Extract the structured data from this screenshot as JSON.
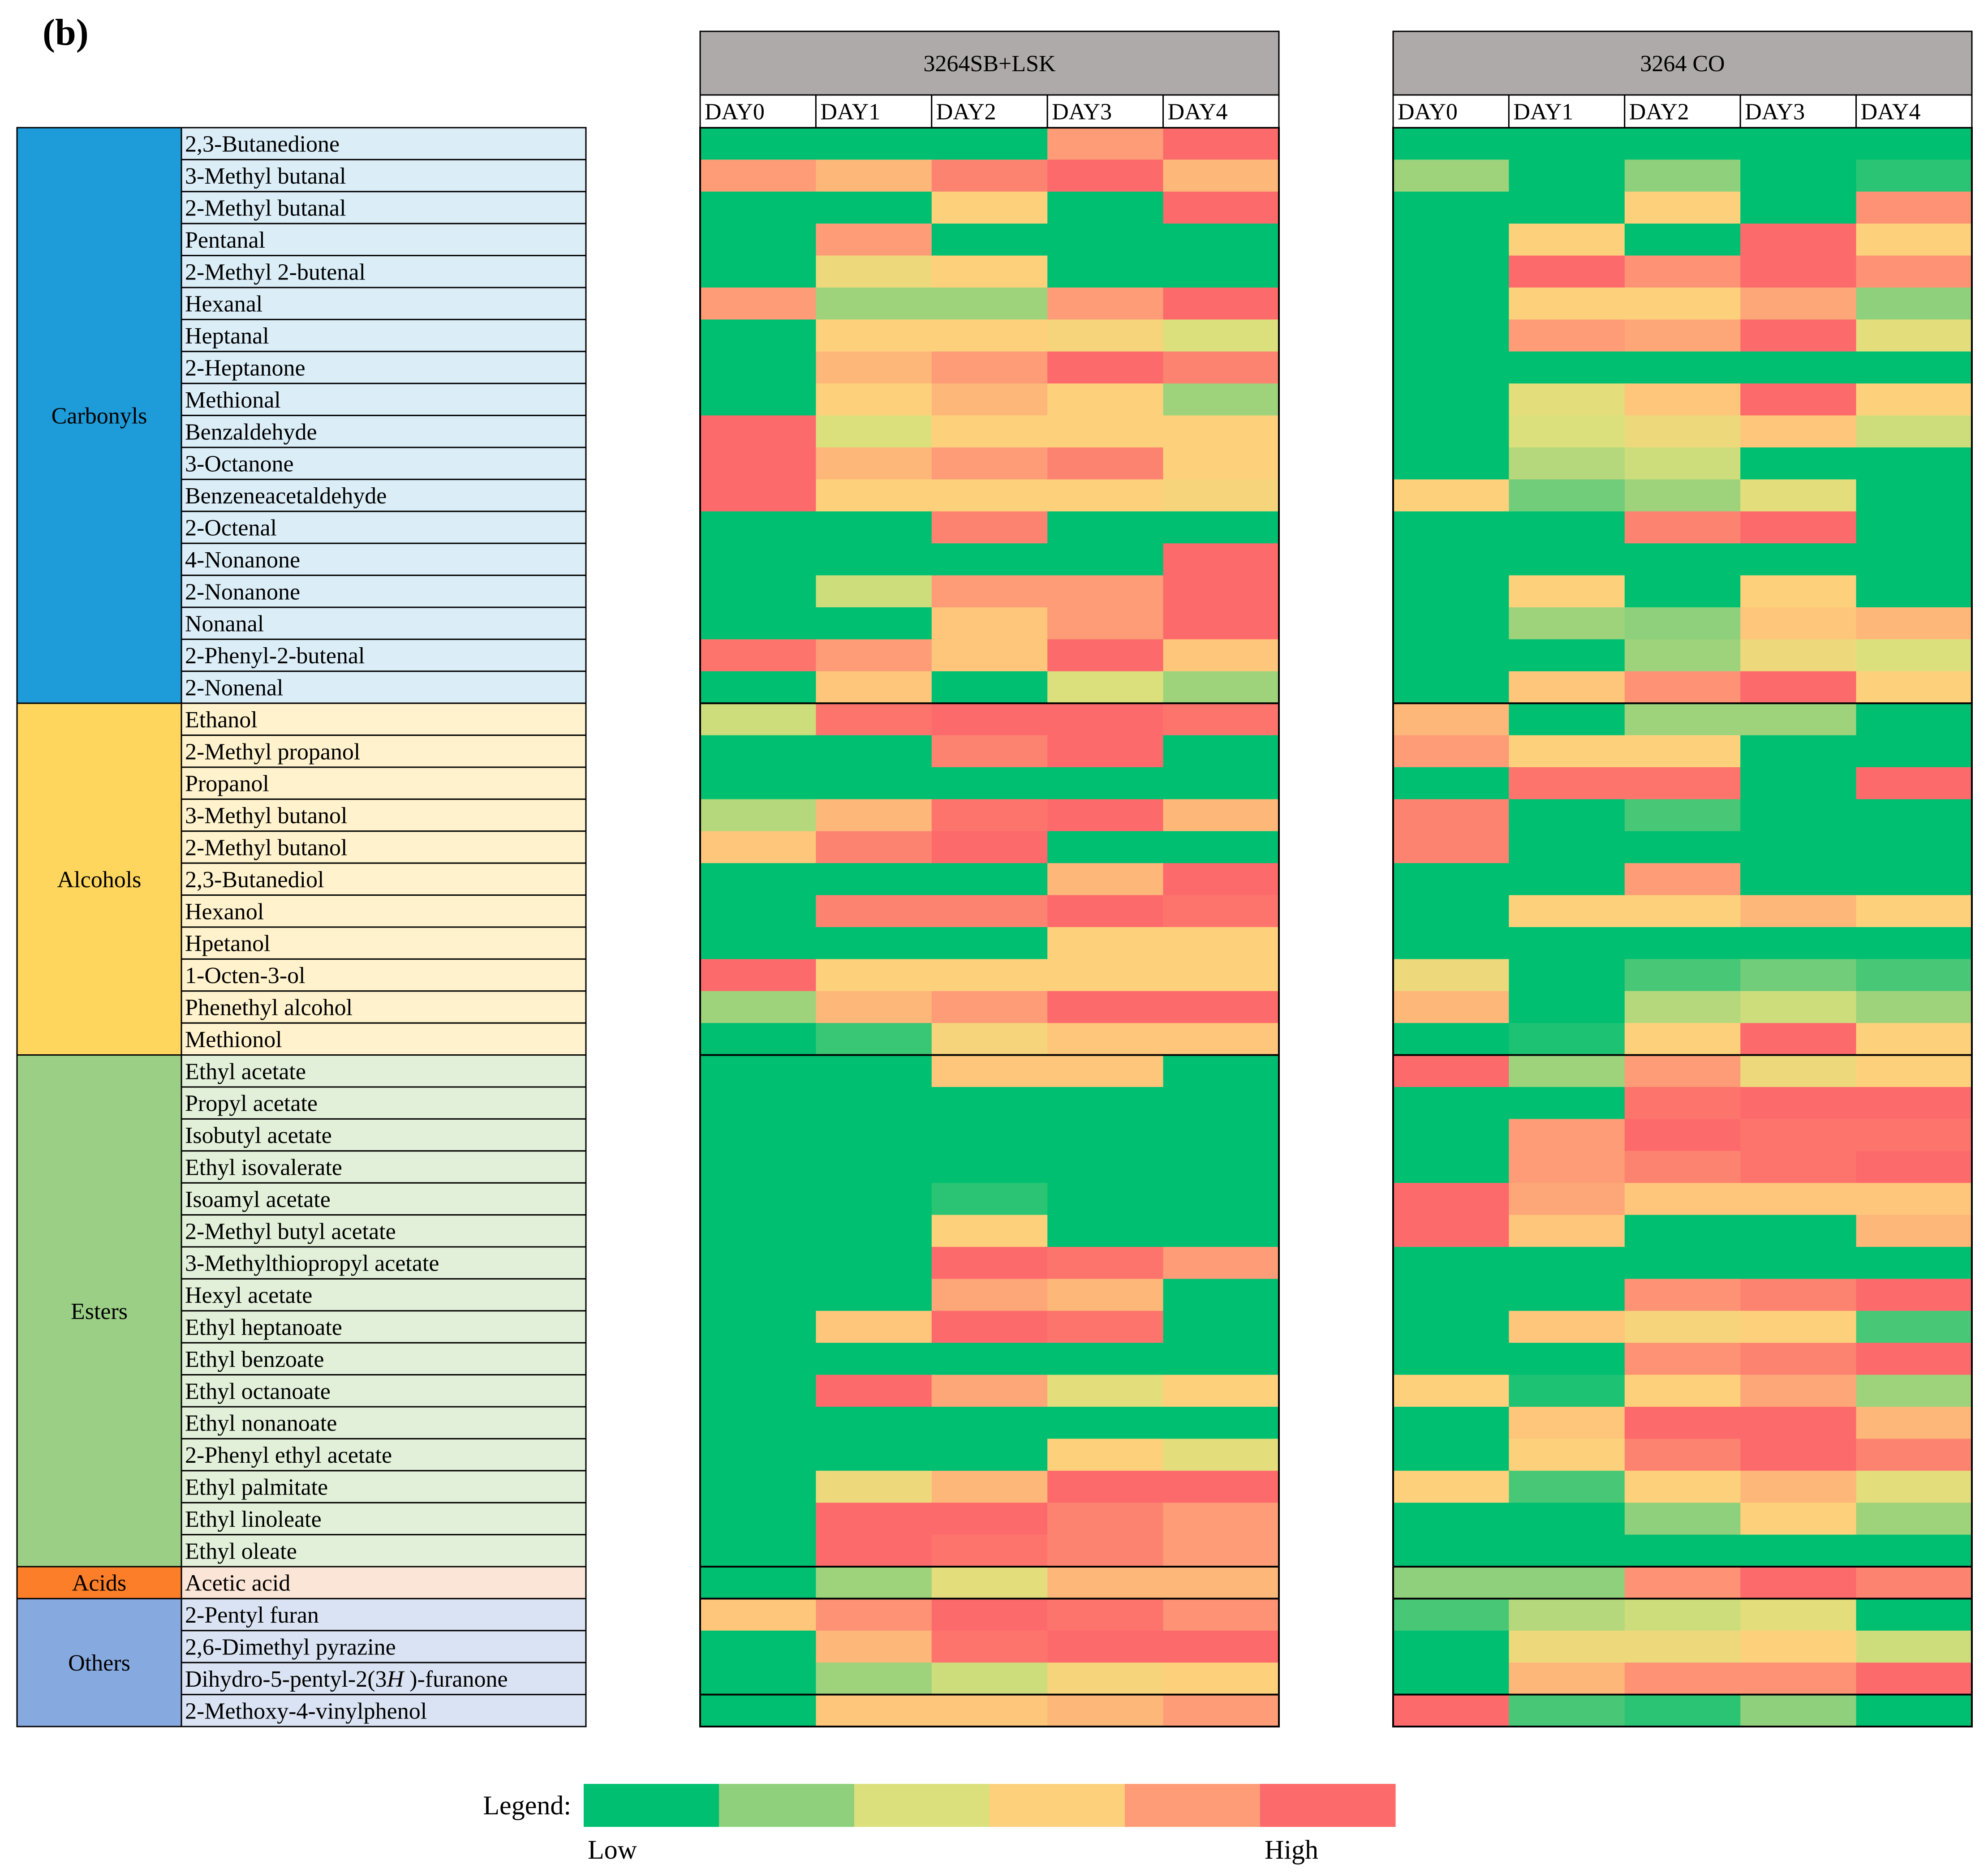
{
  "panel_label": "(b)",
  "legend": {
    "label": "Legend:",
    "low": "Low",
    "high": "High",
    "colors": [
      "#00bf71",
      "#8fd07c",
      "#dce07c",
      "#fdd17b",
      "#fd9c77",
      "#fd6a6b"
    ]
  },
  "colors": {
    "header_fill": "#aeaaa9",
    "groups": {
      "Carbonyls": {
        "main": "#1e9bd9",
        "light": "#dbeef8"
      },
      "Alcohols": {
        "main": "#fed55d",
        "light": "#fff2cc"
      },
      "Esters": {
        "main": "#9bcf86",
        "light": "#e2f0d9"
      },
      "Acids": {
        "main": "#fd7e28",
        "light": "#fbe5d6"
      },
      "Others": {
        "main": "#86a9df",
        "light": "#dae3f3"
      }
    }
  },
  "chart_data": {
    "type": "heatmap",
    "scale": "0 = Low (green) ... 5 = High (red)",
    "groups": [
      {
        "name": "Carbonyls",
        "count": 18
      },
      {
        "name": "Alcohols",
        "count": 11
      },
      {
        "name": "Esters",
        "count": 16
      },
      {
        "name": "Acids",
        "count": 1
      },
      {
        "name": "Others",
        "count": 4
      }
    ],
    "compounds": [
      "2,3-Butanedione",
      "3-Methyl butanal",
      "2-Methyl butanal",
      "Pentanal",
      "2-Methyl 2-butenal",
      "Hexanal",
      "Heptanal",
      "2-Heptanone",
      "Methional",
      "Benzaldehyde",
      "3-Octanone",
      "Benzeneacetaldehyde",
      "2-Octenal",
      "4-Nonanone",
      "2-Nonanone",
      "Nonanal",
      "2-Phenyl-2-butenal",
      "2-Nonenal",
      "Ethanol",
      "2-Methyl propanol",
      "Propanol",
      "3-Methyl butanol",
      "2-Methyl butanol",
      "2,3-Butanediol",
      "Hexanol",
      "Hpetanol",
      "1-Octen-3-ol",
      "Phenethyl alcohol",
      "Methionol",
      "Ethyl acetate",
      "Propyl acetate",
      "Isobutyl acetate",
      "Ethyl isovalerate",
      "Isoamyl acetate",
      "2-Methyl butyl acetate",
      "3-Methylthiopropyl acetate",
      "Hexyl acetate",
      "Ethyl heptanoate",
      "Ethyl benzoate",
      "Ethyl octanoate",
      "Ethyl nonanoate",
      "2-Phenyl ethyl acetate",
      "Ethyl palmitate",
      "Ethyl linoleate",
      "Ethyl oleate",
      "Acetic acid",
      "2-Pentyl furan",
      "2,6-Dimethyl pyrazine",
      "Dihydro-5-pentyl-2(3H)-furanone",
      "2-Methoxy-4-vinylphenol"
    ],
    "panels": [
      {
        "title": "3264SB+LSK",
        "days": [
          "DAY0",
          "DAY1",
          "DAY2",
          "DAY3",
          "DAY4"
        ],
        "values": [
          [
            0,
            0,
            0,
            4,
            5
          ],
          [
            4,
            3.5,
            4.5,
            5,
            3.5
          ],
          [
            0,
            0,
            3,
            0,
            5
          ],
          [
            0,
            4,
            0,
            0,
            0
          ],
          [
            0,
            2.5,
            3,
            0,
            0
          ],
          [
            4,
            1.2,
            1.2,
            4,
            5
          ],
          [
            0,
            3,
            3,
            2.8,
            2
          ],
          [
            0,
            3.5,
            4,
            5,
            4.5
          ],
          [
            0,
            3,
            3.5,
            3,
            1.2
          ],
          [
            5,
            2,
            3,
            3,
            3
          ],
          [
            5,
            3.5,
            4,
            4.5,
            3
          ],
          [
            5,
            3,
            3,
            3,
            2.8
          ],
          [
            0,
            0,
            4.5,
            0,
            0
          ],
          [
            0,
            0,
            0,
            0,
            5
          ],
          [
            0,
            1.8,
            4,
            4,
            5
          ],
          [
            0,
            0,
            3.2,
            4,
            5
          ],
          [
            4.8,
            4,
            3.2,
            5,
            3.2
          ],
          [
            0,
            3.2,
            0,
            2,
            1.2
          ],
          [
            1.8,
            4.8,
            5,
            5,
            4.8
          ],
          [
            0,
            0,
            4.5,
            5,
            0
          ],
          [
            0,
            0,
            0,
            0,
            0
          ],
          [
            1.5,
            3.5,
            4.8,
            5,
            3.5
          ],
          [
            3.2,
            4.5,
            5,
            0,
            0
          ],
          [
            0,
            0,
            0,
            3.5,
            5
          ],
          [
            0,
            4.5,
            4.5,
            5,
            4.8
          ],
          [
            0,
            0,
            0,
            3,
            3
          ],
          [
            5,
            3,
            3,
            3,
            3
          ],
          [
            1.2,
            3.5,
            4,
            5,
            5
          ],
          [
            0,
            0.4,
            2.8,
            3.2,
            3.2
          ],
          [
            0,
            0,
            3.2,
            3.2,
            0
          ],
          [
            0,
            0,
            0,
            0,
            0
          ],
          [
            0,
            0,
            0,
            0,
            0
          ],
          [
            0,
            0,
            0,
            0,
            0
          ],
          [
            0,
            0,
            0.3,
            0,
            0
          ],
          [
            0,
            0,
            3,
            0,
            0
          ],
          [
            0,
            0,
            5,
            4.8,
            4
          ],
          [
            0,
            0,
            3.8,
            3.5,
            0
          ],
          [
            0,
            3.2,
            5,
            4.8,
            0
          ],
          [
            0,
            0,
            0,
            0,
            0
          ],
          [
            0,
            5,
            3.8,
            2.2,
            3
          ],
          [
            0,
            0,
            0,
            0,
            0
          ],
          [
            0,
            0,
            0,
            3,
            2.2
          ],
          [
            0,
            2.5,
            3.5,
            5,
            5
          ],
          [
            0,
            5,
            5,
            4.5,
            4
          ],
          [
            0,
            5,
            4.8,
            4.5,
            4
          ],
          [
            0,
            1.2,
            2.2,
            3.5,
            3.5
          ],
          [
            3.2,
            4.2,
            5,
            4.8,
            4.2
          ],
          [
            0,
            3.5,
            4.8,
            5,
            5
          ],
          [
            0,
            1.2,
            1.8,
            2.8,
            3
          ],
          [
            0,
            3.2,
            3.2,
            3.5,
            4
          ]
        ]
      },
      {
        "title": "3264 CO",
        "days": [
          "DAY0",
          "DAY1",
          "DAY2",
          "DAY3",
          "DAY4"
        ],
        "values": [
          [
            0,
            0,
            0,
            0,
            0
          ],
          [
            1.2,
            0,
            1,
            0,
            0.3
          ],
          [
            0,
            0,
            3,
            0,
            4.2
          ],
          [
            0,
            3,
            0,
            5,
            3
          ],
          [
            0,
            5,
            4.2,
            5,
            4.2
          ],
          [
            0,
            3,
            3,
            3.8,
            1
          ],
          [
            0,
            4,
            3.8,
            5,
            2.2
          ],
          [
            0,
            0,
            0,
            0,
            0
          ],
          [
            0,
            2.2,
            3.2,
            5,
            3
          ],
          [
            0,
            2,
            2.5,
            3.2,
            1.8
          ],
          [
            0,
            1.5,
            1.8,
            0,
            0
          ],
          [
            3,
            0.8,
            1.2,
            2.2,
            0
          ],
          [
            0,
            0,
            4.5,
            5,
            0
          ],
          [
            0,
            0,
            0,
            0,
            0
          ],
          [
            0,
            3,
            0,
            3,
            0
          ],
          [
            0,
            1.2,
            1,
            3.2,
            3.5
          ],
          [
            0,
            0,
            1.2,
            2.5,
            2
          ],
          [
            0,
            3.2,
            4.2,
            5,
            3
          ],
          [
            3.5,
            0,
            1.2,
            1.2,
            0
          ],
          [
            4,
            3,
            3,
            0,
            0
          ],
          [
            0,
            4.8,
            4.8,
            0,
            5
          ],
          [
            4.5,
            0,
            0.5,
            0,
            0
          ],
          [
            4.5,
            0,
            0,
            0,
            0
          ],
          [
            0,
            0,
            4,
            0,
            0
          ],
          [
            0,
            3,
            3,
            3.5,
            3
          ],
          [
            0,
            0,
            0,
            0,
            0
          ],
          [
            2.5,
            0,
            0.5,
            0.8,
            0.5
          ],
          [
            3.5,
            0,
            1.5,
            1.8,
            1.2
          ],
          [
            0,
            0.2,
            3,
            5,
            3
          ],
          [
            5,
            1.2,
            4,
            2.5,
            3
          ],
          [
            0,
            0,
            4.8,
            5,
            5
          ],
          [
            0,
            4,
            5,
            4.8,
            4.8
          ],
          [
            0,
            4,
            4.5,
            4.8,
            5
          ],
          [
            5,
            3.8,
            3.2,
            3.2,
            3.2
          ],
          [
            5,
            3.2,
            0,
            0,
            3.5
          ],
          [
            0,
            0,
            0,
            0,
            0
          ],
          [
            0,
            0,
            4.2,
            4.5,
            5
          ],
          [
            0,
            3.2,
            2.8,
            3,
            0.5
          ],
          [
            0,
            0,
            4.2,
            4.5,
            5
          ],
          [
            3,
            0.2,
            3,
            3.8,
            1.2
          ],
          [
            0,
            3.2,
            5,
            5,
            3.5
          ],
          [
            0,
            3,
            4.5,
            5,
            4.5
          ],
          [
            3,
            0.5,
            3,
            3.5,
            2.2
          ],
          [
            0,
            0,
            1,
            3,
            1.2
          ],
          [
            0,
            0,
            0,
            0,
            0
          ],
          [
            1,
            1,
            4.2,
            5,
            4.5
          ],
          [
            0.5,
            1.5,
            1.8,
            2.2,
            0
          ],
          [
            0,
            2.5,
            2.5,
            3,
            1.8
          ],
          [
            0,
            3.5,
            4.2,
            4.2,
            5
          ],
          [
            5,
            0.5,
            0.3,
            1,
            0
          ]
        ]
      }
    ]
  }
}
